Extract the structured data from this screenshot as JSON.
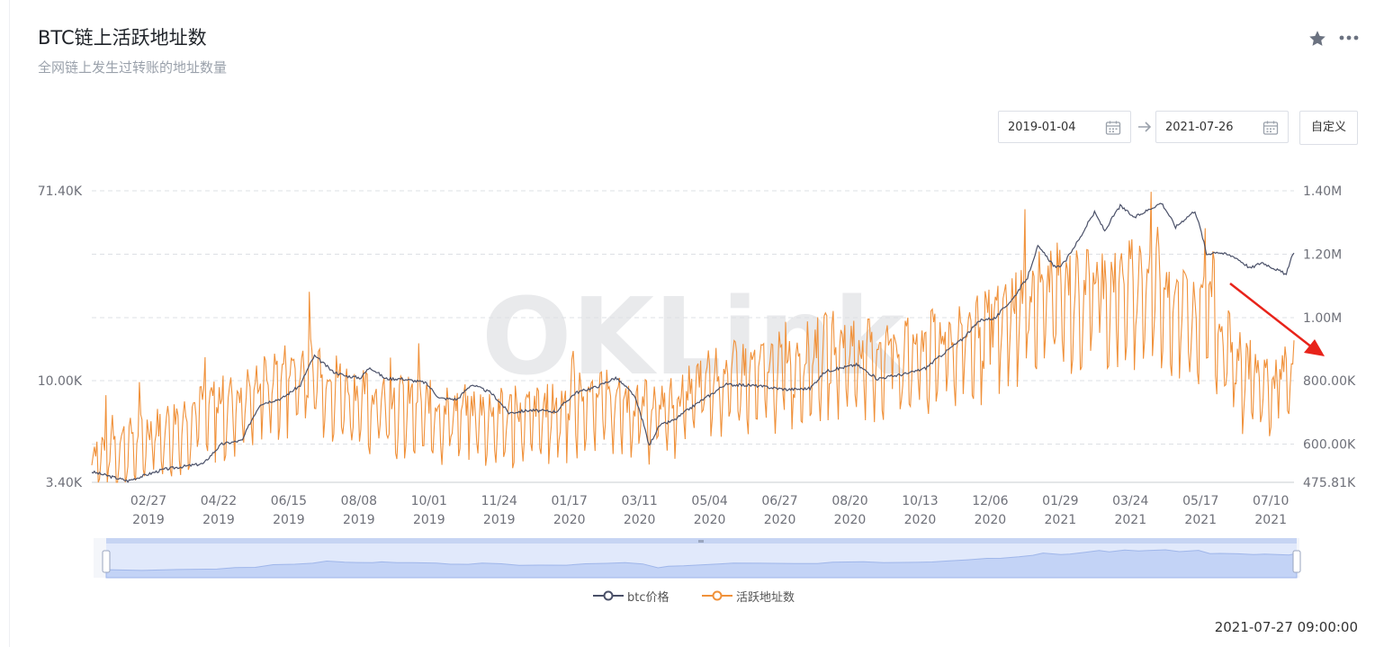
{
  "header": {
    "title": "BTC链上活跃地址数",
    "subtitle": "全网链上发生过转账的地址数量"
  },
  "toolbar": {
    "start_date": "2019-01-04",
    "end_date": "2021-07-26",
    "custom_label": "自定义"
  },
  "watermark": "OKLink",
  "footer": {
    "timestamp": "2021-07-27 09:00:00"
  },
  "colors": {
    "price": "#4a5068",
    "active": "#f0913a",
    "grid": "#dde0e5",
    "axis_text": "#6e7079",
    "zoom_fill": "#dce6fb",
    "arrow": "#e8231a"
  },
  "chart_data": {
    "type": "line",
    "title": "BTC链上活跃地址数",
    "x_ticks": [
      "02/27\n2019",
      "04/22\n2019",
      "06/15\n2019",
      "08/08\n2019",
      "10/01\n2019",
      "11/24\n2019",
      "01/17\n2020",
      "03/11\n2020",
      "05/04\n2020",
      "06/27\n2020",
      "08/20\n2020",
      "10/13\n2020",
      "12/06\n2020",
      "01/29\n2021",
      "03/24\n2021",
      "05/17\n2021",
      "07/10\n2021"
    ],
    "x_range": [
      "2019-01-04",
      "2021-07-26"
    ],
    "left_axis": {
      "scale": "log",
      "ticks": [
        "3.40K",
        "10.00K",
        "71.40K"
      ],
      "range": [
        3400,
        71400
      ]
    },
    "right_axis": {
      "ticks": [
        "475.81K",
        "600.00K",
        "800.00K",
        "1.00M",
        "1.20M",
        "1.40M"
      ],
      "range": [
        475810,
        1400000
      ]
    },
    "legend_position": "bottom-center",
    "grid": true,
    "series": [
      {
        "name": "btc价格",
        "axis": "left",
        "points": [
          [
            "2019-01-04",
            3800
          ],
          [
            "2019-02-01",
            3450
          ],
          [
            "2019-03-01",
            3900
          ],
          [
            "2019-04-01",
            4150
          ],
          [
            "2019-04-15",
            5100
          ],
          [
            "2019-05-01",
            5300
          ],
          [
            "2019-05-15",
            7800
          ],
          [
            "2019-06-01",
            8300
          ],
          [
            "2019-06-15",
            9500
          ],
          [
            "2019-06-26",
            12900
          ],
          [
            "2019-07-10",
            11000
          ],
          [
            "2019-07-20",
            10500
          ],
          [
            "2019-08-01",
            10300
          ],
          [
            "2019-08-08",
            11500
          ],
          [
            "2019-08-20",
            10200
          ],
          [
            "2019-09-01",
            10200
          ],
          [
            "2019-09-20",
            9800
          ],
          [
            "2019-10-01",
            8300
          ],
          [
            "2019-10-15",
            8200
          ],
          [
            "2019-10-26",
            9600
          ],
          [
            "2019-11-10",
            8800
          ],
          [
            "2019-11-24",
            7100
          ],
          [
            "2019-12-10",
            7300
          ],
          [
            "2019-12-31",
            7200
          ],
          [
            "2020-01-15",
            8800
          ],
          [
            "2020-02-01",
            9400
          ],
          [
            "2020-02-15",
            10300
          ],
          [
            "2020-02-29",
            8600
          ],
          [
            "2020-03-12",
            5000
          ],
          [
            "2020-03-20",
            6200
          ],
          [
            "2020-04-01",
            6600
          ],
          [
            "2020-04-30",
            8700
          ],
          [
            "2020-05-10",
            9600
          ],
          [
            "2020-06-01",
            9500
          ],
          [
            "2020-06-27",
            9100
          ],
          [
            "2020-07-15",
            9200
          ],
          [
            "2020-07-27",
            11000
          ],
          [
            "2020-08-20",
            11800
          ],
          [
            "2020-09-05",
            10200
          ],
          [
            "2020-09-30",
            10800
          ],
          [
            "2020-10-13",
            11400
          ],
          [
            "2020-10-25",
            13000
          ],
          [
            "2020-11-10",
            15300
          ],
          [
            "2020-11-25",
            18800
          ],
          [
            "2020-12-06",
            19100
          ],
          [
            "2020-12-20",
            23500
          ],
          [
            "2020-12-31",
            29000
          ],
          [
            "2021-01-08",
            40000
          ],
          [
            "2021-01-22",
            32000
          ],
          [
            "2021-01-29",
            34000
          ],
          [
            "2021-02-10",
            44000
          ],
          [
            "2021-02-21",
            57000
          ],
          [
            "2021-03-01",
            47000
          ],
          [
            "2021-03-13",
            61000
          ],
          [
            "2021-03-24",
            54000
          ],
          [
            "2021-04-14",
            63000
          ],
          [
            "2021-04-25",
            49000
          ],
          [
            "2021-05-10",
            58000
          ],
          [
            "2021-05-19",
            37000
          ],
          [
            "2021-05-27",
            38000
          ],
          [
            "2021-06-10",
            36000
          ],
          [
            "2021-06-22",
            32000
          ],
          [
            "2021-07-01",
            34000
          ],
          [
            "2021-07-20",
            30000
          ],
          [
            "2021-07-26",
            38000
          ]
        ]
      },
      {
        "name": "活跃地址数",
        "axis": "right",
        "weekly_cycle": true,
        "baseline_points": [
          [
            "2019-01-04",
            560000
          ],
          [
            "2019-02-01",
            600000
          ],
          [
            "2019-03-01",
            640000
          ],
          [
            "2019-04-01",
            700000
          ],
          [
            "2019-05-01",
            740000
          ],
          [
            "2019-06-01",
            810000
          ],
          [
            "2019-06-26",
            840000
          ],
          [
            "2019-07-20",
            760000
          ],
          [
            "2019-08-08",
            730000
          ],
          [
            "2019-09-01",
            720000
          ],
          [
            "2019-10-01",
            700000
          ],
          [
            "2019-11-01",
            690000
          ],
          [
            "2019-12-01",
            680000
          ],
          [
            "2020-01-01",
            700000
          ],
          [
            "2020-02-01",
            760000
          ],
          [
            "2020-03-01",
            700000
          ],
          [
            "2020-04-01",
            720000
          ],
          [
            "2020-05-01",
            810000
          ],
          [
            "2020-06-01",
            820000
          ],
          [
            "2020-07-01",
            850000
          ],
          [
            "2020-08-01",
            900000
          ],
          [
            "2020-09-01",
            880000
          ],
          [
            "2020-10-01",
            880000
          ],
          [
            "2020-11-01",
            920000
          ],
          [
            "2020-12-01",
            960000
          ],
          [
            "2021-01-01",
            1060000
          ],
          [
            "2021-01-20",
            1090000
          ],
          [
            "2021-02-01",
            1070000
          ],
          [
            "2021-03-01",
            1080000
          ],
          [
            "2021-04-01",
            1110000
          ],
          [
            "2021-04-20",
            1080000
          ],
          [
            "2021-05-10",
            1000000
          ],
          [
            "2021-05-19",
            1150000
          ],
          [
            "2021-06-01",
            920000
          ],
          [
            "2021-06-20",
            820000
          ],
          [
            "2021-07-10",
            780000
          ],
          [
            "2021-07-26",
            820000
          ]
        ]
      }
    ]
  },
  "legend": {
    "price_label": "btc价格",
    "active_label": "活跃地址数"
  }
}
